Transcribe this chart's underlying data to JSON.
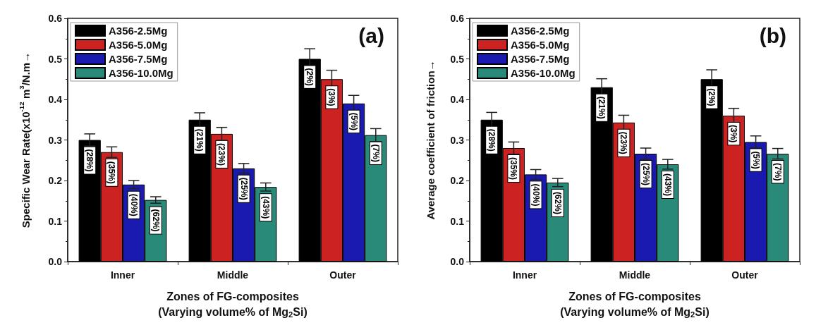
{
  "chart_data": [
    {
      "type": "bar",
      "title": "(a)",
      "ylabel": "Specific Wear Rate(x10$^{-12}$ m$^{3}$/N.m→",
      "xlabel": "Zones of FG-composites\n(Varying volume% of Mg$_{2}$Si)",
      "categories": [
        "Inner",
        "Middle",
        "Outer"
      ],
      "series": [
        {
          "name": "A356-2.5Mg",
          "color": "#000000",
          "values": [
            0.3,
            0.35,
            0.5
          ],
          "errors": [
            0.015,
            0.017,
            0.025
          ]
        },
        {
          "name": "A356-5.0Mg",
          "color": "#cc2222",
          "values": [
            0.27,
            0.315,
            0.45
          ],
          "errors": [
            0.013,
            0.016,
            0.022
          ]
        },
        {
          "name": "A356-7.5Mg",
          "color": "#1a1ab0",
          "values": [
            0.19,
            0.23,
            0.39
          ],
          "errors": [
            0.01,
            0.012,
            0.02
          ]
        },
        {
          "name": "A356-10.0Mg",
          "color": "#2a8a7a",
          "values": [
            0.152,
            0.184,
            0.312
          ],
          "errors": [
            0.008,
            0.01,
            0.016
          ]
        }
      ],
      "annotations": [
        "(28%)",
        "(21%)",
        "(2%)",
        "(35%)",
        "(23%)",
        "(3%)",
        "(40%)",
        "(25%)",
        "(5%)",
        "(62%)",
        "(43%)",
        "(7%)"
      ],
      "ylim": [
        0,
        0.6
      ],
      "yticks": [
        {
          "value": 0,
          "label": "0.0"
        },
        0.1,
        0.2,
        0.3,
        0.4,
        0.5,
        0.6
      ],
      "grid": false,
      "legend": "top left"
    },
    {
      "type": "bar",
      "title": "(b)",
      "ylabel": "Average coefficient of friction→",
      "xlabel": "Zones of FG-composites\n(Varying volume% of Mg$_{2}$Si)",
      "categories": [
        "Inner",
        "Middle",
        "Outer"
      ],
      "series": [
        {
          "name": "A356-2.5Mg",
          "color": "#000000",
          "values": [
            0.35,
            0.43,
            0.45
          ],
          "errors": [
            0.018,
            0.021,
            0.023
          ]
        },
        {
          "name": "A356-5.0Mg",
          "color": "#cc2222",
          "values": [
            0.28,
            0.343,
            0.36
          ],
          "errors": [
            0.015,
            0.018,
            0.018
          ]
        },
        {
          "name": "A356-7.5Mg",
          "color": "#1a1ab0",
          "values": [
            0.215,
            0.266,
            0.295
          ],
          "errors": [
            0.012,
            0.014,
            0.015
          ]
        },
        {
          "name": "A356-10.0Mg",
          "color": "#2a8a7a",
          "values": [
            0.195,
            0.24,
            0.266
          ],
          "errors": [
            0.01,
            0.012,
            0.013
          ]
        }
      ],
      "annotations": [
        "(28%)",
        "(21%)",
        "(2%)",
        "(35%)",
        "(23%)",
        "(3%)",
        "(40%)",
        "(25%)",
        "(5%)",
        "(62%)",
        "(43%)",
        "(7%)"
      ],
      "ylim": [
        0,
        0.6
      ],
      "yticks": [
        {
          "value": 0,
          "label": "0.0"
        },
        0.1,
        0.2,
        0.3,
        0.4,
        0.5,
        0.6
      ],
      "grid": false,
      "legend": "top left"
    }
  ]
}
